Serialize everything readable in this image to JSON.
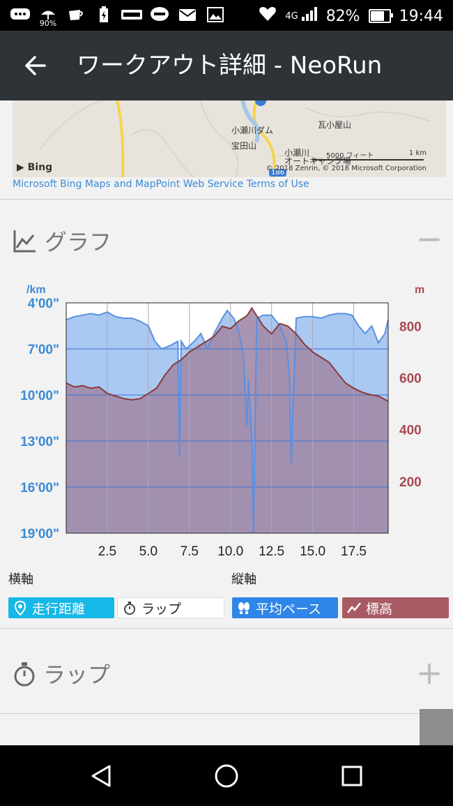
{
  "status_bar": {
    "notification_icons": [
      "message-icon",
      "umbrella-icon",
      "coffee-icon",
      "battery-charging-icon",
      "sports-app-icon",
      "line-app-icon",
      "mail-icon",
      "image-icon"
    ],
    "rain_percent": "90%",
    "network": "4G",
    "battery": "82%",
    "battery_level": 0.82,
    "time": "19:44"
  },
  "app_bar": {
    "back_icon": "arrow-left-icon",
    "title": "ワークアウト詳細 - NeoRun"
  },
  "map": {
    "labels": [
      "小瀬川ダム",
      "瓦小屋山",
      "宝田山",
      "小瀬川",
      "オートキャンプ場",
      "186"
    ],
    "bing_logo": "Bing",
    "scale_feet": "5000 フィート",
    "scale_km": "1 km",
    "copyright": "© 2018 Zenrin, © 2018 Microsoft Corporation",
    "terms_link": "Microsoft Bing Maps and MapPoint Web Service Terms of Use"
  },
  "graph_section": {
    "title": "グラフ",
    "icon": "line-chart-icon",
    "toggle": "−"
  },
  "chart_data": {
    "type": "area",
    "left_axis_unit": "/km",
    "right_axis_unit": "m",
    "left_ticks": [
      "4'00\"",
      "7'00\"",
      "10'00\"",
      "13'00\"",
      "16'00\"",
      "19'00\""
    ],
    "right_ticks": [
      "800",
      "600",
      "400",
      "200"
    ],
    "x_ticks": [
      "2.5",
      "5.0",
      "7.5",
      "10.0",
      "12.5",
      "15.0",
      "17.5"
    ],
    "xlim": [
      0,
      19.6
    ],
    "pace_ylim_minutes": [
      4,
      19
    ],
    "elevation_ylim_m": [
      0,
      890
    ],
    "colors": {
      "pace": "#5b8fe0",
      "pace_fill": "#a9c8f2",
      "elevation": "#8a3b3b",
      "elevation_fill": "#a08aa8"
    },
    "series": [
      {
        "axis": "left",
        "x": [
          0,
          0.5,
          1.0,
          1.5,
          2.0,
          2.5,
          3.0,
          3.5,
          4.0,
          4.5,
          5.0,
          5.4,
          5.8,
          6.3,
          6.8,
          6.9,
          7.0,
          7.3,
          7.8,
          8.2,
          8.6,
          9.0,
          9.5,
          9.8,
          10.2,
          10.5,
          10.8,
          10.9,
          11.0,
          11.1,
          11.3,
          11.4,
          11.6,
          12.0,
          12.5,
          13.0,
          13.4,
          13.6,
          13.7,
          14.0,
          14.5,
          15.0,
          15.5,
          16.0,
          16.5,
          17.0,
          17.4,
          17.8,
          18.2,
          18.6,
          19.0,
          19.4,
          19.6
        ],
        "values": [
          5.1,
          4.9,
          4.8,
          4.7,
          4.8,
          4.6,
          4.9,
          5.0,
          5.0,
          5.2,
          5.5,
          6.5,
          7.0,
          6.8,
          6.5,
          14.0,
          6.5,
          7.0,
          6.5,
          6.0,
          7.0,
          6.0,
          5.0,
          4.5,
          5.0,
          5.8,
          7.5,
          10.0,
          12.0,
          9.0,
          13.0,
          19.0,
          5.0,
          4.8,
          4.8,
          5.5,
          6.5,
          9.0,
          14.5,
          5.0,
          4.9,
          4.9,
          5.0,
          4.8,
          4.7,
          4.7,
          4.8,
          5.5,
          6.0,
          5.5,
          6.6,
          6.0,
          5.1
        ]
      },
      {
        "axis": "right",
        "x": [
          0,
          0.5,
          1.0,
          1.5,
          2.0,
          2.5,
          3.0,
          3.5,
          4.0,
          4.5,
          5.0,
          5.5,
          6.0,
          6.5,
          7.0,
          7.5,
          8.0,
          8.5,
          9.0,
          9.5,
          10.0,
          10.5,
          11.0,
          11.3,
          11.6,
          12.0,
          12.5,
          13.0,
          13.5,
          14.0,
          14.5,
          15.0,
          15.5,
          16.0,
          16.5,
          17.0,
          17.5,
          18.0,
          18.5,
          19.0,
          19.6
        ],
        "values": [
          580,
          565,
          570,
          560,
          565,
          540,
          530,
          520,
          515,
          520,
          540,
          560,
          610,
          650,
          670,
          700,
          720,
          740,
          760,
          800,
          790,
          820,
          840,
          870,
          840,
          800,
          770,
          810,
          800,
          770,
          730,
          700,
          680,
          660,
          620,
          580,
          560,
          545,
          535,
          530,
          510
        ]
      }
    ]
  },
  "axis_controls": {
    "horizontal_label": "横軸",
    "vertical_label": "縦軸",
    "chips": [
      {
        "label": "走行距離",
        "icon": "location-pin-icon",
        "bg": "#16b8e8"
      },
      {
        "label": "ラップ",
        "icon": "stopwatch-icon",
        "bg": "#ffffff"
      },
      {
        "label": "平均ペース",
        "icon": "footprints-icon",
        "bg": "#2e86e6"
      },
      {
        "label": "標高",
        "icon": "elevation-icon",
        "bg": "#a85a62"
      }
    ]
  },
  "lap_section": {
    "title": "ラップ",
    "icon": "stopwatch-icon",
    "toggle": "+"
  },
  "nav_bar": {
    "buttons": [
      "back-triangle-icon",
      "home-circle-icon",
      "recents-square-icon"
    ]
  }
}
